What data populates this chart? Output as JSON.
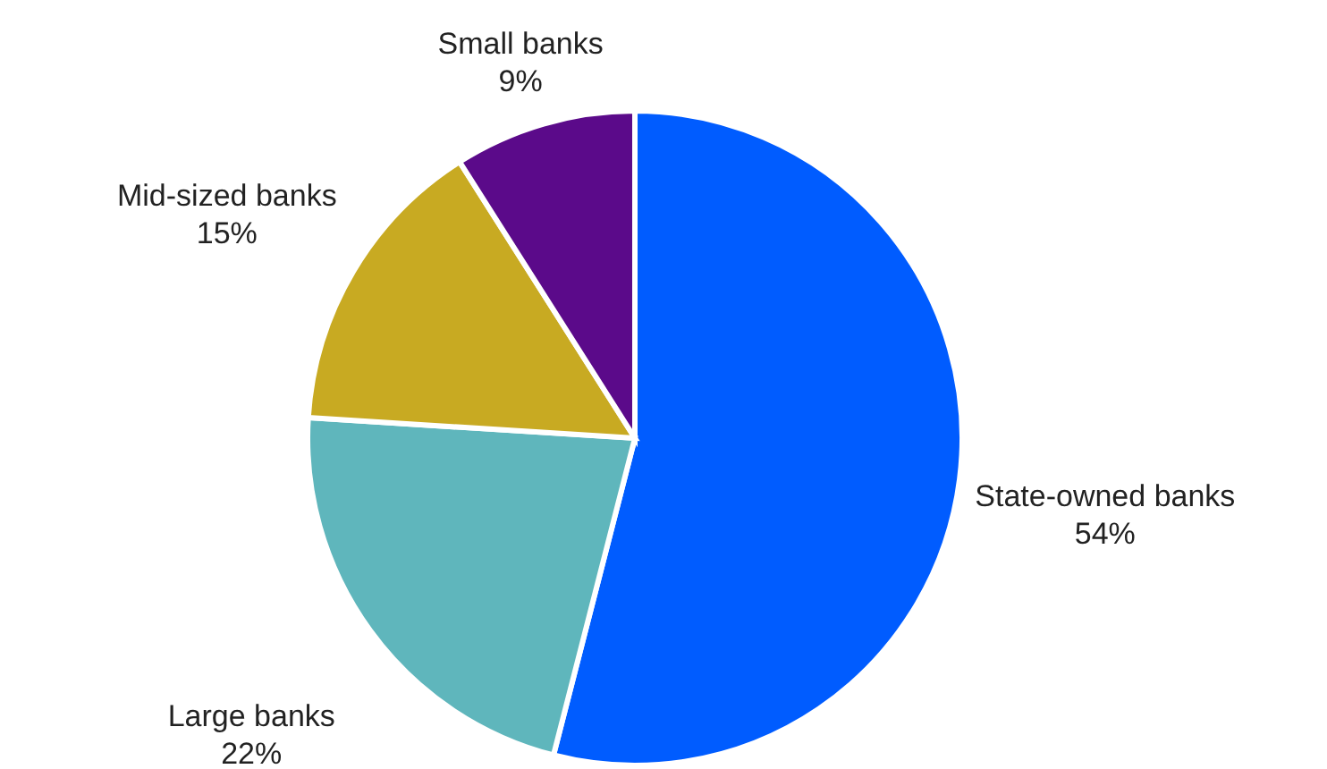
{
  "chart_data": {
    "type": "pie",
    "categories": [
      "State-owned banks",
      "Large banks",
      "Mid-sized banks",
      "Small banks"
    ],
    "values": [
      54,
      22,
      15,
      9
    ],
    "value_labels": [
      "54%",
      "22%",
      "15%",
      "9%"
    ],
    "colors": [
      "#005cff",
      "#5fb6bc",
      "#c8aa22",
      "#5b0a8a"
    ],
    "legend": false
  }
}
